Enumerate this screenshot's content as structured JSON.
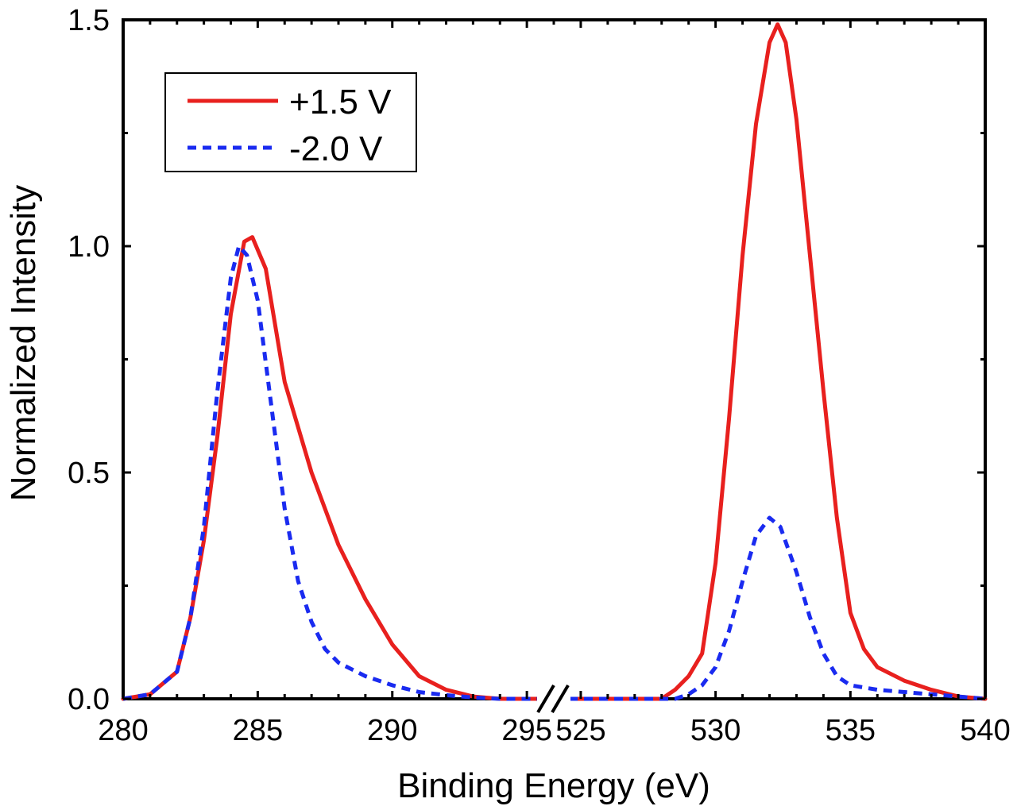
{
  "chart_data": {
    "type": "line",
    "title": "",
    "xlabel": "Binding Energy (eV)",
    "ylabel": "Normalized Intensity",
    "ylim": [
      0,
      1.5
    ],
    "yticks": [
      "0.0",
      "0.5",
      "1.0",
      "1.5"
    ],
    "broken_x_axis": true,
    "segments": [
      {
        "xlim": [
          280,
          296
        ],
        "ticks": [
          "280",
          "285",
          "290",
          "295"
        ]
      },
      {
        "xlim": [
          524,
          540
        ],
        "ticks": [
          "525",
          "530",
          "535",
          "540"
        ]
      }
    ],
    "legend": {
      "placement": "top-left"
    },
    "series": [
      {
        "name": "+1.5 V",
        "color": "#e8201e",
        "style": "solid",
        "segments": [
          [
            [
              280,
              0
            ],
            [
              281,
              0.01
            ],
            [
              282,
              0.06
            ],
            [
              282.5,
              0.18
            ],
            [
              283,
              0.35
            ],
            [
              283.5,
              0.58
            ],
            [
              284,
              0.85
            ],
            [
              284.5,
              1.01
            ],
            [
              284.8,
              1.02
            ],
            [
              285.3,
              0.95
            ],
            [
              286,
              0.7
            ],
            [
              287,
              0.5
            ],
            [
              288,
              0.34
            ],
            [
              289,
              0.22
            ],
            [
              290,
              0.12
            ],
            [
              291,
              0.05
            ],
            [
              292,
              0.02
            ],
            [
              293,
              0.005
            ],
            [
              294,
              0
            ],
            [
              296,
              0
            ]
          ],
          [
            [
              524,
              0
            ],
            [
              528,
              0
            ],
            [
              528.5,
              0.02
            ],
            [
              529,
              0.05
            ],
            [
              529.5,
              0.1
            ],
            [
              530,
              0.3
            ],
            [
              530.5,
              0.62
            ],
            [
              531,
              0.98
            ],
            [
              531.5,
              1.27
            ],
            [
              532,
              1.45
            ],
            [
              532.3,
              1.49
            ],
            [
              532.6,
              1.45
            ],
            [
              533,
              1.28
            ],
            [
              533.5,
              0.98
            ],
            [
              534,
              0.68
            ],
            [
              534.5,
              0.4
            ],
            [
              535,
              0.19
            ],
            [
              535.5,
              0.11
            ],
            [
              536,
              0.07
            ],
            [
              537,
              0.04
            ],
            [
              538,
              0.02
            ],
            [
              539,
              0.005
            ],
            [
              540,
              0
            ]
          ]
        ]
      },
      {
        "name": "-2.0 V",
        "color": "#1a2bf0",
        "style": "dashed",
        "segments": [
          [
            [
              280,
              0
            ],
            [
              281,
              0.01
            ],
            [
              282,
              0.06
            ],
            [
              282.5,
              0.18
            ],
            [
              283,
              0.38
            ],
            [
              283.5,
              0.68
            ],
            [
              284,
              0.93
            ],
            [
              284.3,
              1.0
            ],
            [
              284.6,
              0.98
            ],
            [
              285,
              0.88
            ],
            [
              285.5,
              0.65
            ],
            [
              286,
              0.42
            ],
            [
              286.5,
              0.26
            ],
            [
              287,
              0.17
            ],
            [
              287.5,
              0.11
            ],
            [
              288,
              0.08
            ],
            [
              289,
              0.05
            ],
            [
              290,
              0.03
            ],
            [
              291,
              0.015
            ],
            [
              292,
              0.008
            ],
            [
              293,
              0.003
            ],
            [
              294,
              0
            ],
            [
              296,
              0
            ]
          ],
          [
            [
              524,
              0
            ],
            [
              528.5,
              0
            ],
            [
              529,
              0.01
            ],
            [
              529.5,
              0.03
            ],
            [
              530,
              0.07
            ],
            [
              530.5,
              0.15
            ],
            [
              531,
              0.26
            ],
            [
              531.5,
              0.36
            ],
            [
              532,
              0.4
            ],
            [
              532.4,
              0.38
            ],
            [
              533,
              0.28
            ],
            [
              533.5,
              0.18
            ],
            [
              534,
              0.1
            ],
            [
              534.5,
              0.05
            ],
            [
              535,
              0.03
            ],
            [
              536,
              0.02
            ],
            [
              537,
              0.015
            ],
            [
              538,
              0.01
            ],
            [
              539,
              0.005
            ],
            [
              540,
              0
            ]
          ]
        ]
      }
    ]
  }
}
